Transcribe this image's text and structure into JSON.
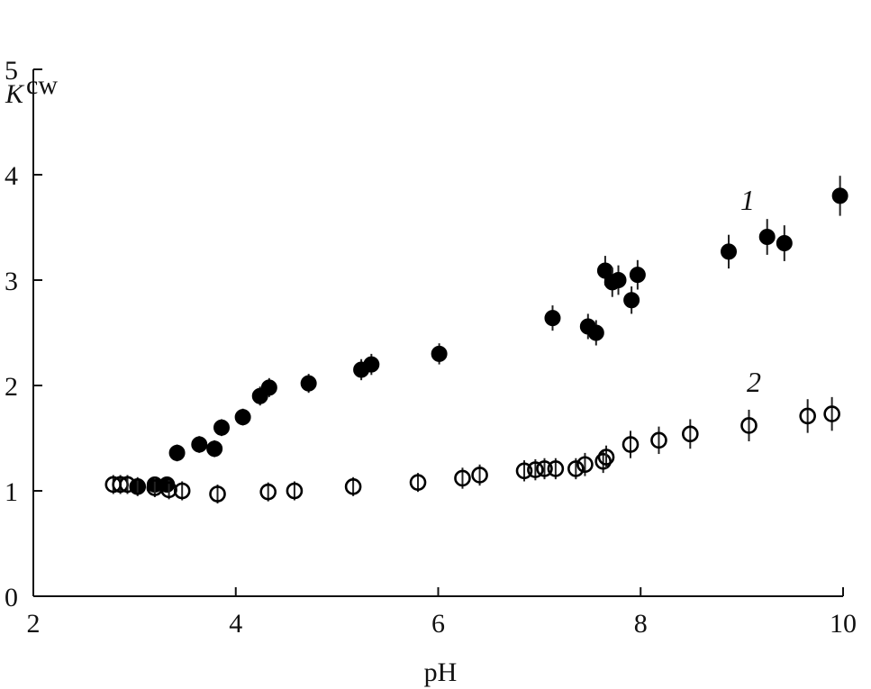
{
  "chart_data": {
    "type": "scatter",
    "title": "",
    "xlabel": "pH",
    "ylabel_main": "K",
    "ylabel_sup": "cw",
    "xlim": [
      2,
      10
    ],
    "ylim": [
      0,
      5
    ],
    "xticks": [
      "2",
      "4",
      "6",
      "8",
      "10"
    ],
    "yticks": [
      "0",
      "1",
      "2",
      "3",
      "4",
      "5"
    ],
    "grid": false,
    "series": [
      {
        "name": "1",
        "marker": "filled-circle",
        "color": "#000000",
        "x": [
          3.03,
          3.2,
          3.32,
          3.42,
          3.64,
          3.79,
          3.86,
          4.07,
          4.24,
          4.33,
          4.72,
          5.24,
          5.34,
          6.01,
          7.13,
          7.48,
          7.56,
          7.65,
          7.72,
          7.78,
          7.91,
          7.97,
          8.87,
          9.25,
          9.42,
          9.97
        ],
        "y": [
          1.04,
          1.06,
          1.06,
          1.36,
          1.44,
          1.4,
          1.6,
          1.7,
          1.9,
          1.98,
          2.02,
          2.15,
          2.2,
          2.3,
          2.64,
          2.56,
          2.5,
          3.09,
          2.98,
          3.0,
          2.81,
          3.05,
          3.27,
          3.41,
          3.35,
          3.8
        ],
        "err": [
          0.07,
          0.07,
          0.07,
          0.08,
          0.08,
          0.08,
          0.08,
          0.08,
          0.09,
          0.09,
          0.09,
          0.1,
          0.1,
          0.1,
          0.12,
          0.12,
          0.12,
          0.14,
          0.14,
          0.14,
          0.13,
          0.14,
          0.16,
          0.17,
          0.17,
          0.19
        ]
      },
      {
        "name": "2",
        "marker": "open-circle",
        "color": "#000000",
        "x": [
          2.79,
          2.86,
          2.93,
          3.03,
          3.2,
          3.34,
          3.47,
          3.82,
          4.32,
          4.58,
          5.16,
          5.8,
          6.24,
          6.41,
          6.85,
          6.96,
          7.05,
          7.16,
          7.36,
          7.45,
          7.63,
          7.66,
          7.9,
          8.18,
          8.49,
          9.07,
          9.65,
          9.89
        ],
        "y": [
          1.06,
          1.06,
          1.06,
          1.04,
          1.03,
          1.01,
          1.0,
          0.97,
          0.99,
          1.0,
          1.04,
          1.08,
          1.12,
          1.15,
          1.19,
          1.2,
          1.21,
          1.21,
          1.21,
          1.25,
          1.28,
          1.32,
          1.44,
          1.48,
          1.54,
          1.62,
          1.71,
          1.73
        ],
        "err": [
          0.09,
          0.09,
          0.09,
          0.09,
          0.09,
          0.09,
          0.09,
          0.09,
          0.09,
          0.09,
          0.09,
          0.09,
          0.1,
          0.1,
          0.1,
          0.1,
          0.1,
          0.1,
          0.1,
          0.11,
          0.11,
          0.11,
          0.13,
          0.13,
          0.14,
          0.15,
          0.16,
          0.16
        ]
      }
    ]
  }
}
